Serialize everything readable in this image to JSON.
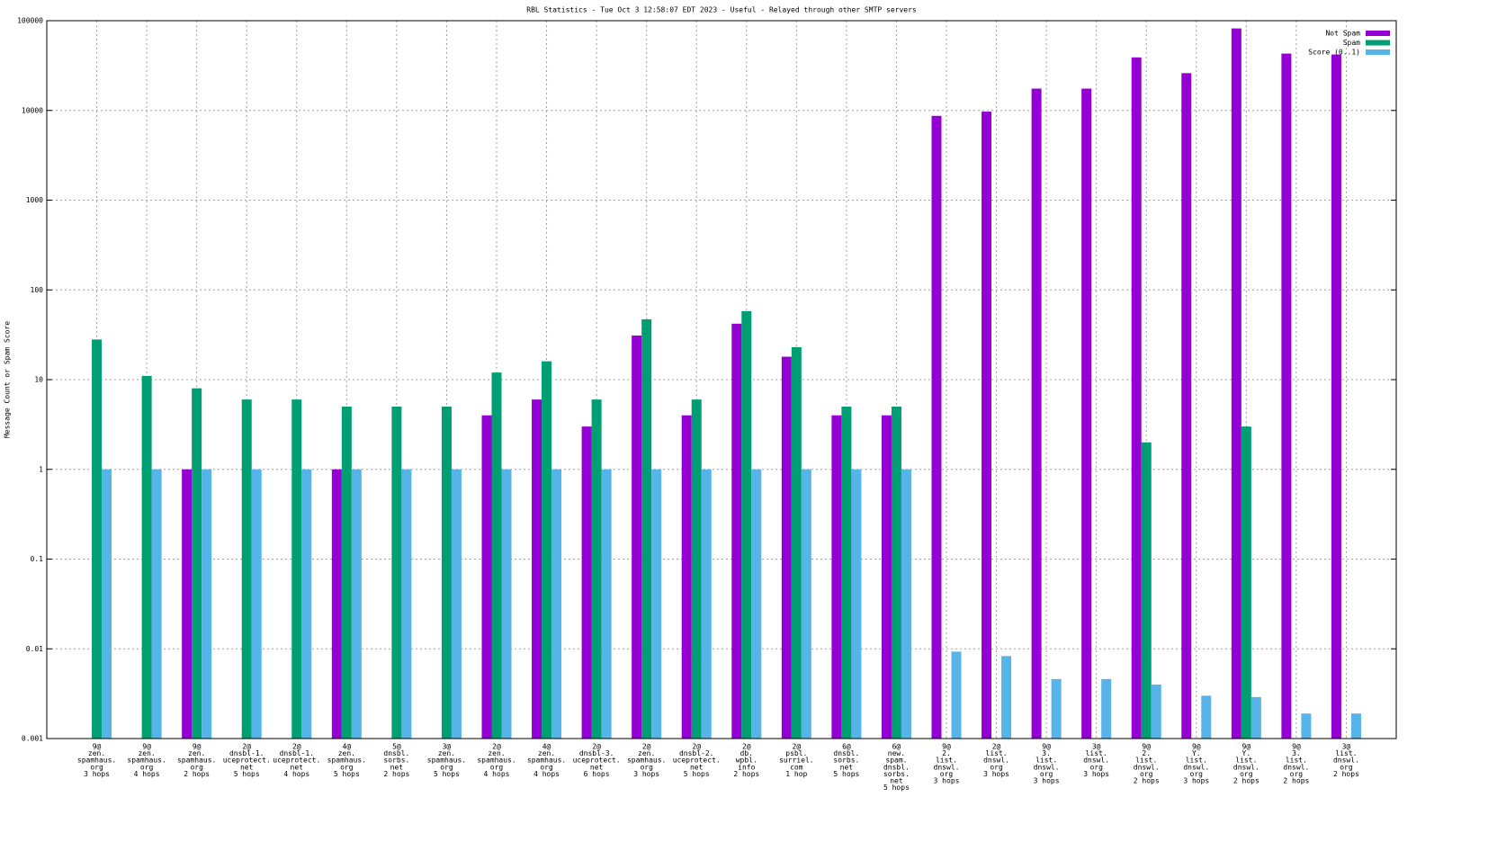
{
  "chart_data": {
    "type": "bar",
    "title": "RBL Statistics - Tue Oct  3 12:58:07 EDT 2023 - Useful - Relayed through other SMTP servers",
    "ylabel": "Message Count or Spam Score",
    "categories": [
      [
        "9@",
        "zen.",
        "spamhaus.",
        "org",
        "3 hops"
      ],
      [
        "9@",
        "zen.",
        "spamhaus.",
        "org",
        "4 hops"
      ],
      [
        "9@",
        "zen.",
        "spamhaus.",
        "org",
        "2 hops"
      ],
      [
        "2@",
        "dnsbl-1.",
        "uceprotect.",
        "net",
        "5 hops"
      ],
      [
        "2@",
        "dnsbl-1.",
        "uceprotect.",
        "net",
        "4 hops"
      ],
      [
        "4@",
        "zen.",
        "spamhaus.",
        "org",
        "5 hops"
      ],
      [
        "5@",
        "dnsbl.",
        "sorbs.",
        "net",
        "2 hops"
      ],
      [
        "3@",
        "zen.",
        "spamhaus.",
        "org",
        "5 hops"
      ],
      [
        "2@",
        "zen.",
        "spamhaus.",
        "org",
        "4 hops"
      ],
      [
        "4@",
        "zen.",
        "spamhaus.",
        "org",
        "4 hops"
      ],
      [
        "2@",
        "dnsbl-3.",
        "uceprotect.",
        "net",
        "6 hops"
      ],
      [
        "2@",
        "zen.",
        "spamhaus.",
        "org",
        "3 hops"
      ],
      [
        "2@",
        "dnsbl-2.",
        "uceprotect.",
        "net",
        "5 hops"
      ],
      [
        "2@",
        "db.",
        "wpbl.",
        "info",
        "2 hops"
      ],
      [
        "2@",
        "psbl.",
        "surriel.",
        "com",
        "1 hop"
      ],
      [
        "6@",
        "dnsbl.",
        "sorbs.",
        "net",
        "5 hops"
      ],
      [
        "6@",
        "new.",
        "spam.",
        "dnsbl.",
        "sorbs.",
        "net",
        "5 hops"
      ],
      [
        "9@",
        "2.",
        "list.",
        "dnswl.",
        "org",
        "3 hops"
      ],
      [
        "2@",
        "list.",
        "dnswl.",
        "org",
        "3 hops"
      ],
      [
        "9@",
        "3.",
        "list.",
        "dnswl.",
        "org",
        "3 hops"
      ],
      [
        "3@",
        "list.",
        "dnswl.",
        "org",
        "3 hops"
      ],
      [
        "9@",
        "2.",
        "list.",
        "dnswl.",
        "org",
        "2 hops"
      ],
      [
        "9@",
        "Y.",
        "list.",
        "dnswl.",
        "org",
        "3 hops"
      ],
      [
        "9@",
        "Y.",
        "list.",
        "dnswl.",
        "org",
        "2 hops"
      ],
      [
        "9@",
        "3.",
        "list.",
        "dnswl.",
        "org",
        "2 hops"
      ],
      [
        "3@",
        "list.",
        "dnswl.",
        "org",
        "2 hops"
      ]
    ],
    "series": [
      {
        "name": "Not Spam",
        "color": "#9400d3",
        "values": [
          null,
          null,
          1,
          null,
          null,
          1,
          null,
          null,
          4,
          6,
          3,
          31,
          4,
          42,
          18,
          4,
          4,
          8700,
          9700,
          17500,
          17500,
          39000,
          26000,
          82000,
          43000,
          42000
        ]
      },
      {
        "name": "Spam",
        "color": "#009e73",
        "values": [
          28,
          11,
          8,
          6,
          6,
          5,
          5,
          5,
          12,
          16,
          6,
          47,
          6,
          58,
          23,
          5,
          5,
          null,
          null,
          null,
          null,
          2,
          null,
          3,
          null,
          null
        ]
      },
      {
        "name": "Score (0..1)",
        "color": "#56b4e9",
        "values": [
          1,
          1,
          1,
          1,
          1,
          1,
          1,
          1,
          1,
          1,
          1,
          1,
          1,
          1,
          1,
          1,
          1,
          0.0093,
          0.0083,
          0.0046,
          0.0046,
          0.004,
          0.003,
          0.0029,
          0.0019,
          0.0019
        ]
      }
    ],
    "log_scale": true,
    "ylim": [
      0.001,
      100000
    ],
    "yticks": [
      0.001,
      0.01,
      0.1,
      1,
      10,
      100,
      1000,
      10000,
      100000
    ],
    "grid": true,
    "legend": "top-right"
  }
}
